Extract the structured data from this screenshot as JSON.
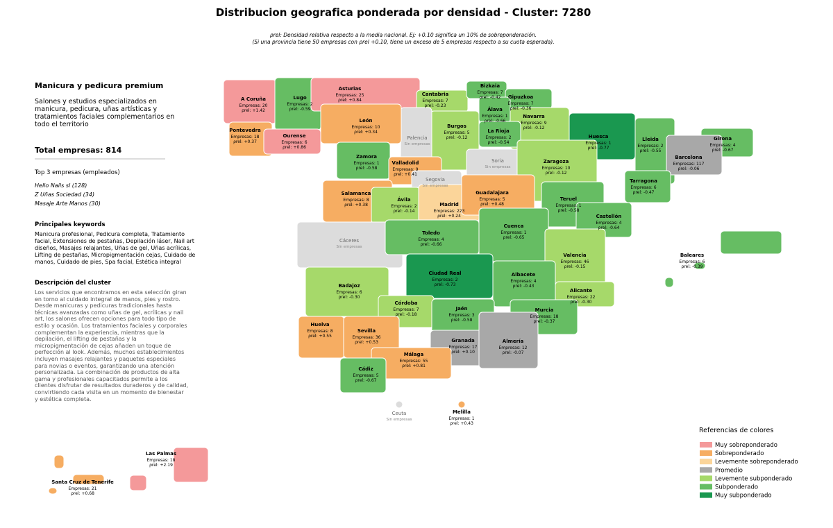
{
  "header": {
    "title": "Distribucion geografica ponderada por densidad - Cluster: 7280",
    "subtitle_lines": [
      "ρrel: Densidad relativa respecto a la media nacional. Ej: +0.10 significa un 10% de sobreponderación.",
      "(Si una provincia tiene 50 empresas con ρrel +0.10, tiene un exceso de 5 empresas respecto a su cuota esperada)."
    ]
  },
  "sidebar": {
    "name": "Manicura y pedicura premium",
    "summary": "Salones y estudios especializados en manicura, pedicura, uñas artísticas y tratamientos faciales complementarios en todo el territorio",
    "total": "Total empresas: 814",
    "top_title": "Top 3 empresas (empleados)",
    "top": [
      "Hello Nails sl (128)",
      "Z Uñas Sociedad (34)",
      "Masaje Arte Manos (30)"
    ],
    "keywords_title": "Principales keywords",
    "keywords": "Manicura profesional, Pedicura completa, Tratamiento facial, Extensiones de pestañas, Depilación láser, Nail art diseños, Masajes relajantes, Uñas de gel, Uñas acrílicas, Lifting de pestañas, Micropigmentación cejas, Cuidado de manos, Cuidado de pies, Spa facial, Estética integral",
    "description_title": "Descripción del cluster",
    "description": "Los servicios que encontramos en esta selección giran en torno al cuidado integral de manos, pies y rostro. Desde manicuras y pedicuras tradicionales hasta técnicas avanzadas como uñas de gel, acrílicas y nail art, los salones ofrecen opciones para todo tipo de estilo y ocasión. Los tratamientos faciales y corporales complementan la experiencia, mientras que la depilación, el lifting de pestañas y la micropigmentación de cejas añaden un toque de perfección al look. Además, muchos establecimientos incluyen masajes relajantes y paquetes especiales para novias o eventos, garantizando una atención personalizada. La combinación de productos de alta gama y profesionales capacitados permite a los clientes disfrutar de resultados duraderos y de calidad, convirtiendo cada visita en un momento de bienestar y estética completa."
  },
  "legend": {
    "title": "Referencias de colores",
    "items": [
      {
        "label": "Muy sobreponderado",
        "color": "#f4999a"
      },
      {
        "label": "Sobreponderado",
        "color": "#f6ad62"
      },
      {
        "label": "Levemente sobreponderado",
        "color": "#fbd59a"
      },
      {
        "label": "Promedio",
        "color": "#a8a8a8"
      },
      {
        "label": "Levemente subponderado",
        "color": "#a6d96a"
      },
      {
        "label": "Subponderado",
        "color": "#66bd63"
      },
      {
        "label": "Muy subponderado",
        "color": "#1a9850"
      }
    ]
  },
  "provinces": [
    {
      "name": "A Coruña",
      "empresas": "Empresas: 20",
      "rho": "ρrel: +1.42",
      "color": "#f4999a"
    },
    {
      "name": "Lugo",
      "empresas": "Empresas: 2",
      "rho": "ρrel: -0.59",
      "color": "#66bd63"
    },
    {
      "name": "Asturias",
      "empresas": "Empresas: 25",
      "rho": "ρrel: +0.84",
      "color": "#f4999a"
    },
    {
      "name": "Cantabria",
      "empresas": "Empresas: 7",
      "rho": "ρrel: -0.23",
      "color": "#a6d96a"
    },
    {
      "name": "Bizkaia",
      "empresas": "Empresas: 7",
      "rho": "ρrel: -0.42",
      "color": "#66bd63"
    },
    {
      "name": "Gipuzkoa",
      "empresas": "Empresas: 7",
      "rho": "ρrel: -0.36",
      "color": "#66bd63"
    },
    {
      "name": "Álava",
      "empresas": "Empresas: 1",
      "rho": "ρrel: -0.66",
      "color": "#66bd63"
    },
    {
      "name": "Navarra",
      "empresas": "Empresas: 9",
      "rho": "ρrel: -0.12",
      "color": "#a6d96a"
    },
    {
      "name": "La Rioja",
      "empresas": "Empresas: 2",
      "rho": "ρrel: -0.54",
      "color": "#66bd63"
    },
    {
      "name": "Burgos",
      "empresas": "Empresas: 5",
      "rho": "ρrel: -0.12",
      "color": "#a6d96a"
    },
    {
      "name": "Palencia",
      "status": "Sin empresas",
      "color": "#dcdcdc"
    },
    {
      "name": "León",
      "empresas": "Empresas: 10",
      "rho": "ρrel: +0.34",
      "color": "#f6ad62"
    },
    {
      "name": "Pontevedra",
      "empresas": "Empresas: 18",
      "rho": "ρrel: +0.37",
      "color": "#f6ad62"
    },
    {
      "name": "Ourense",
      "empresas": "Empresas: 6",
      "rho": "ρrel: +0.86",
      "color": "#f4999a"
    },
    {
      "name": "Zamora",
      "empresas": "Empresas: 1",
      "rho": "ρrel: -0.58",
      "color": "#66bd63"
    },
    {
      "name": "Valladolid",
      "empresas": "Empresas: 9",
      "rho": "ρrel: +0.41",
      "color": "#f6ad62"
    },
    {
      "name": "Soria",
      "status": "Sin empresas",
      "color": "#dcdcdc"
    },
    {
      "name": "Segovia",
      "status": "Sin empresas",
      "color": "#dcdcdc"
    },
    {
      "name": "Huesca",
      "empresas": "Empresas: 1",
      "rho": "ρrel: -0.77",
      "color": "#1a9850"
    },
    {
      "name": "Lleida",
      "empresas": "Empresas: 2",
      "rho": "ρrel: -0.55",
      "color": "#66bd63"
    },
    {
      "name": "Girona",
      "empresas": "Empresas: 4",
      "rho": "ρrel: -0.67",
      "color": "#66bd63"
    },
    {
      "name": "Barcelona",
      "empresas": "Empresas: 117",
      "rho": "ρrel: -0.06",
      "color": "#a8a8a8"
    },
    {
      "name": "Zaragoza",
      "empresas": "Empresas: 10",
      "rho": "ρrel: -0.12",
      "color": "#a6d96a"
    },
    {
      "name": "Tarragona",
      "empresas": "Empresas: 6",
      "rho": "ρrel: -0.47",
      "color": "#66bd63"
    },
    {
      "name": "Salamanca",
      "empresas": "Empresas: 8",
      "rho": "ρrel: +0.38",
      "color": "#f6ad62"
    },
    {
      "name": "Ávila",
      "empresas": "Empresas: 2",
      "rho": "ρrel: -0.14",
      "color": "#a6d96a"
    },
    {
      "name": "Madrid",
      "empresas": "Empresas: 223",
      "rho": "ρrel: +0.24",
      "color": "#fbd59a"
    },
    {
      "name": "Guadalajara",
      "empresas": "Empresas: 5",
      "rho": "ρrel: +0.48",
      "color": "#f6ad62"
    },
    {
      "name": "Teruel",
      "empresas": "Empresas: 1",
      "rho": "ρrel: -0.58",
      "color": "#66bd63"
    },
    {
      "name": "Castellón",
      "empresas": "Empresas: 4",
      "rho": "ρrel: -0.64",
      "color": "#66bd63"
    },
    {
      "name": "Cáceres",
      "status": "Sin empresas",
      "color": "#dcdcdc"
    },
    {
      "name": "Toledo",
      "empresas": "Empresas: 4",
      "rho": "ρrel: -0.66",
      "color": "#66bd63"
    },
    {
      "name": "Cuenca",
      "empresas": "Empresas: 1",
      "rho": "ρrel: -0.65",
      "color": "#66bd63"
    },
    {
      "name": "Valencia",
      "empresas": "Empresas: 46",
      "rho": "ρrel: -0.15",
      "color": "#a6d96a"
    },
    {
      "name": "Baleares",
      "empresas": "Empresas: 6",
      "rho": "ρrel: -0.39",
      "color": "#66bd63"
    },
    {
      "name": "Ciudad Real",
      "empresas": "Empresas: 2",
      "rho": "ρrel: -0.73",
      "color": "#1a9850"
    },
    {
      "name": "Badajoz",
      "empresas": "Empresas: 6",
      "rho": "ρrel: -0.30",
      "color": "#a6d96a"
    },
    {
      "name": "Albacete",
      "empresas": "Empresas: 4",
      "rho": "ρrel: -0.43",
      "color": "#66bd63"
    },
    {
      "name": "Alicante",
      "empresas": "Empresas: 22",
      "rho": "ρrel: -0.30",
      "color": "#a6d96a"
    },
    {
      "name": "Córdoba",
      "empresas": "Empresas: 7",
      "rho": "ρrel: -0.18",
      "color": "#a6d96a"
    },
    {
      "name": "Jaén",
      "empresas": "Empresas: 3",
      "rho": "ρrel: -0.58",
      "color": "#66bd63"
    },
    {
      "name": "Murcia",
      "empresas": "Empresas: 18",
      "rho": "ρrel: -0.37",
      "color": "#66bd63"
    },
    {
      "name": "Huelva",
      "empresas": "Empresas: 8",
      "rho": "ρrel: +0.55",
      "color": "#f6ad62"
    },
    {
      "name": "Sevilla",
      "empresas": "Empresas: 36",
      "rho": "ρrel: +0.53",
      "color": "#f6ad62"
    },
    {
      "name": "Granada",
      "empresas": "Empresas: 17",
      "rho": "ρrel: +0.10",
      "color": "#a8a8a8"
    },
    {
      "name": "Almería",
      "empresas": "Empresas: 12",
      "rho": "ρrel: -0.07",
      "color": "#a8a8a8"
    },
    {
      "name": "Málaga",
      "empresas": "Empresas: 55",
      "rho": "ρrel: +0.81",
      "color": "#f6ad62"
    },
    {
      "name": "Cádiz",
      "empresas": "Empresas: 5",
      "rho": "ρrel: -0.67",
      "color": "#66bd63"
    },
    {
      "name": "Ceuta",
      "status": "Sin empresas",
      "color": "#dcdcdc"
    },
    {
      "name": "Melilla",
      "empresas": "Empresas: 1",
      "rho": "ρrel: +0.43",
      "color": "#f6ad62"
    },
    {
      "name": "Las Palmas",
      "empresas": "Empresas: 18",
      "rho": "ρrel: +2.19",
      "color": "#f4999a"
    },
    {
      "name": "Santa Cruz de Tenerife",
      "empresas": "Empresas: 21",
      "rho": "ρrel: +0.68",
      "color": "#f6ad62"
    }
  ]
}
